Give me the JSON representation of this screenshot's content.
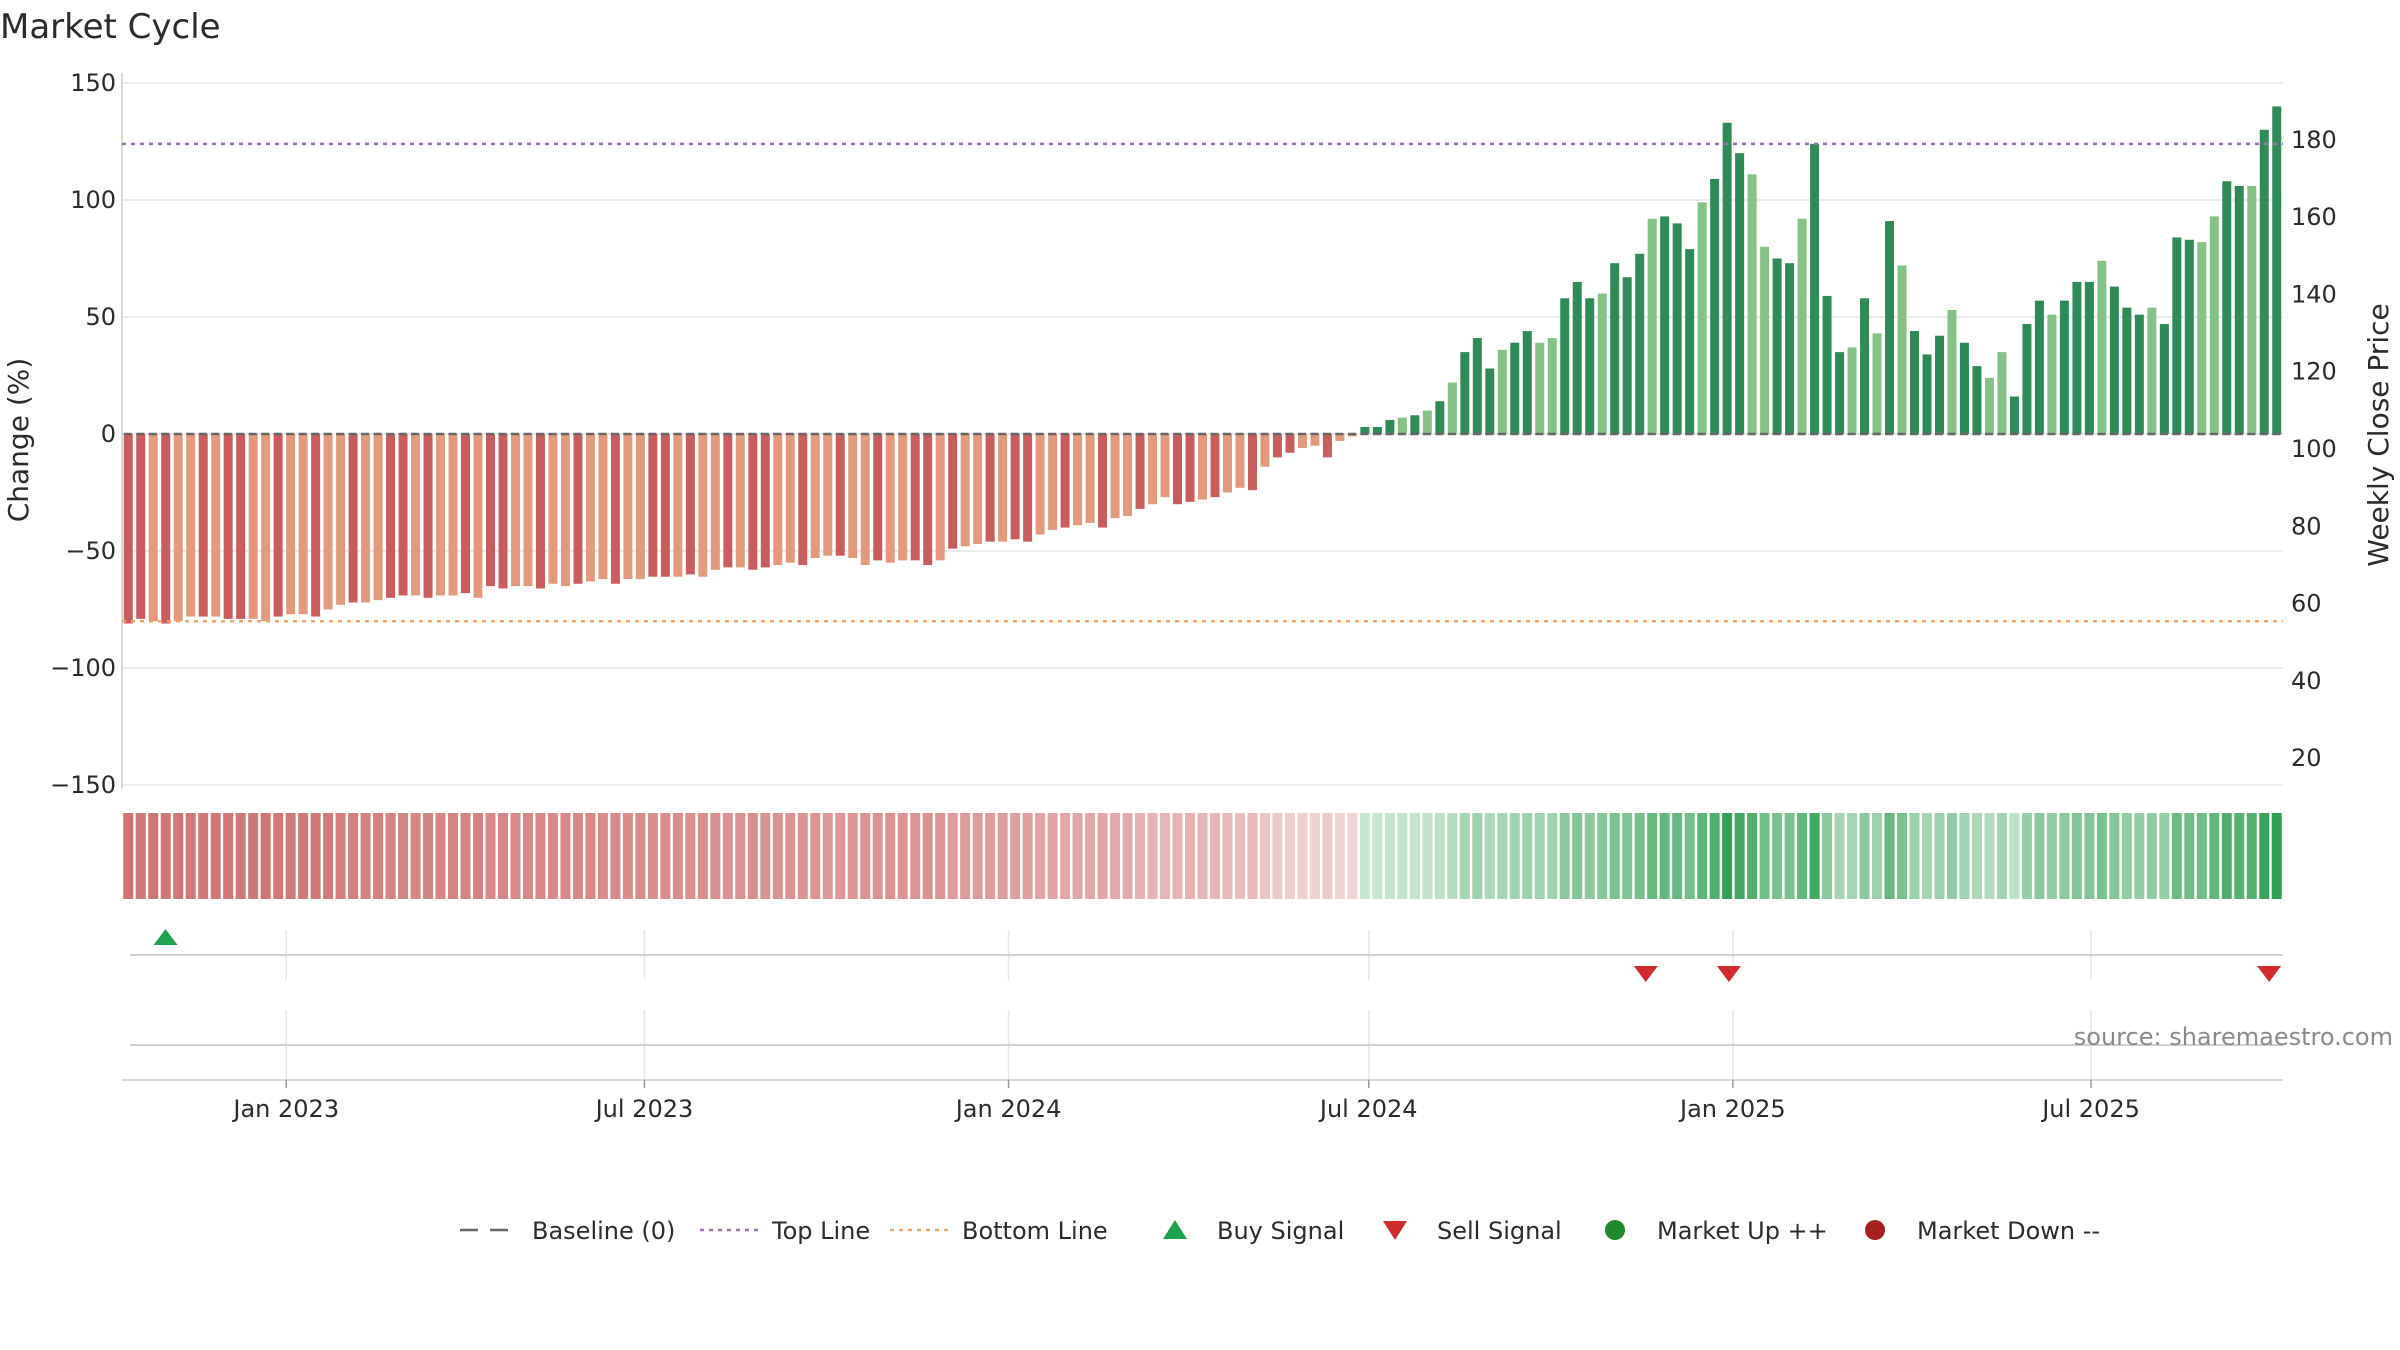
{
  "chart_data": {
    "type": "bar",
    "title": "Market Cycle",
    "ylabel": "Change (%)",
    "y2label": "Weekly Close Price",
    "ylim": [
      -150,
      150
    ],
    "y2lim": [
      0,
      180
    ],
    "yticks": [
      "150",
      "100",
      "50",
      "0",
      "−50",
      "−100",
      "−150"
    ],
    "yticks_values": [
      150,
      100,
      50,
      0,
      -50,
      -100,
      -150
    ],
    "y2ticks": [
      "180",
      "160",
      "140",
      "120",
      "100",
      "80",
      "60",
      "40",
      "20"
    ],
    "y2ticks_values": [
      180,
      160,
      140,
      120,
      100,
      80,
      60,
      40,
      20
    ],
    "x_start": "2022-10-10",
    "x_end": "2025-10-06",
    "xticks": [
      {
        "label": "Jan 2023",
        "date": "2023-01-01"
      },
      {
        "label": "Jul 2023",
        "date": "2023-07-01"
      },
      {
        "label": "Jan 2024",
        "date": "2024-01-01"
      },
      {
        "label": "Jul 2024",
        "date": "2024-07-01"
      },
      {
        "label": "Jan 2025",
        "date": "2025-01-01"
      },
      {
        "label": "Jul 2025",
        "date": "2025-07-01"
      }
    ],
    "top_line": 124,
    "bottom_line": -80,
    "baseline": 0,
    "values": [
      -81,
      -79,
      -80,
      -81,
      -80,
      -78,
      -78,
      -78,
      -79,
      -79,
      -79,
      -80,
      -78,
      -77,
      -77,
      -78,
      -75,
      -73,
      -72,
      -72,
      -71,
      -70,
      -69,
      -69,
      -70,
      -69,
      -69,
      -68,
      -70,
      -65,
      -66,
      -65,
      -65,
      -66,
      -64,
      -65,
      -64,
      -63,
      -62,
      -64,
      -62,
      -62,
      -61,
      -61,
      -61,
      -60,
      -61,
      -58,
      -57,
      -57,
      -58,
      -57,
      -56,
      -55,
      -56,
      -53,
      -52,
      -52,
      -53,
      -56,
      -54,
      -55,
      -54,
      -54,
      -56,
      -54,
      -49,
      -48,
      -47,
      -46,
      -46,
      -45,
      -46,
      -43,
      -41,
      -40,
      -39,
      -38,
      -40,
      -36,
      -35,
      -32,
      -30,
      -27,
      -30,
      -29,
      -28,
      -27,
      -25,
      -23,
      -24,
      -14,
      -10,
      -8,
      -6,
      -5,
      -10,
      -3,
      -1,
      3,
      3,
      6,
      7,
      8,
      10,
      14,
      22,
      35,
      41,
      28,
      36,
      39,
      44,
      39,
      41,
      58,
      65,
      58,
      60,
      73,
      67,
      77,
      92,
      93,
      90,
      79,
      99,
      109,
      133,
      120,
      111,
      80,
      75,
      73,
      92,
      124,
      59,
      35,
      37,
      58,
      43,
      91,
      72,
      44,
      34,
      42,
      53,
      39,
      29,
      24,
      35,
      16,
      47,
      57,
      51,
      57,
      65,
      65,
      74,
      63,
      54,
      51,
      54,
      47,
      84,
      83,
      82,
      93,
      108,
      106,
      106,
      130,
      140
    ],
    "series_colors": {
      "down_dark": "#c95c5c",
      "down_light": "#e39a7c",
      "up_dark": "#2e8b57",
      "up_light": "#84c285",
      "top_line": "#9a6fb3",
      "bottom_line": "#f0a56b",
      "baseline": "#666666",
      "buy": "#1fa24f",
      "sell": "#d22b2b",
      "market_up": "#1f8b2b",
      "market_down": "#a62020"
    },
    "buy_signals": [
      "2022-11-01"
    ],
    "sell_signals": [
      "2024-11-18",
      "2024-12-30",
      "2025-09-29"
    ],
    "legend": {
      "placement": "bottom",
      "items": [
        {
          "label": "Baseline (0)",
          "kind": "dash"
        },
        {
          "label": "Top Line",
          "kind": "dot-purple"
        },
        {
          "label": "Bottom Line",
          "kind": "dot-orange"
        },
        {
          "label": "Buy Signal",
          "kind": "tri-up"
        },
        {
          "label": "Sell Signal",
          "kind": "tri-down"
        },
        {
          "label": "Market Up ++",
          "kind": "circle-green"
        },
        {
          "label": "Market Down --",
          "kind": "circle-red"
        }
      ]
    },
    "source": "source: sharemaestro.com",
    "grid": true
  }
}
